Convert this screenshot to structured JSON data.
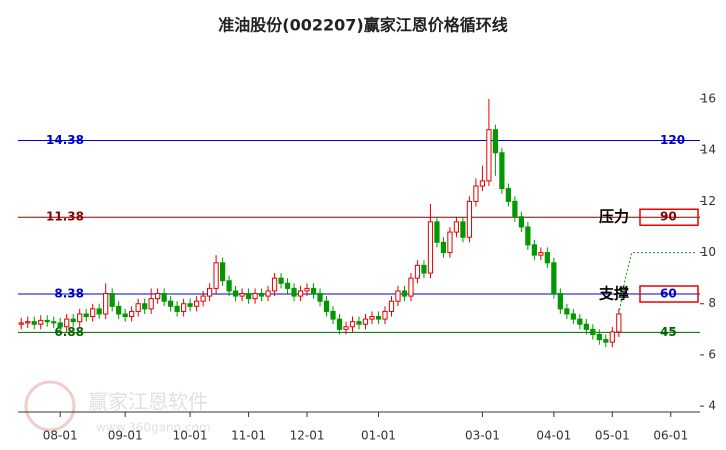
{
  "chart_data": {
    "type": "candlestick",
    "title": "准油股份(002207)赢家江恩价格循环线",
    "watermark": "赢家江恩软件",
    "watermark_url": "www.360gann.com",
    "up_color": "#e60000",
    "down_color": "#009900",
    "categories": [
      null,
      null,
      null,
      null,
      null,
      null,
      "08-01",
      null,
      null,
      null,
      null,
      null,
      null,
      null,
      null,
      null,
      "09-01",
      null,
      null,
      null,
      null,
      null,
      null,
      null,
      null,
      null,
      "10-01",
      null,
      null,
      null,
      null,
      null,
      null,
      null,
      null,
      "11-01",
      null,
      null,
      null,
      null,
      null,
      null,
      null,
      null,
      "12-01",
      null,
      null,
      null,
      null,
      null,
      null,
      null,
      null,
      null,
      null,
      "01-01",
      null,
      null,
      null,
      null,
      null,
      null,
      null,
      null,
      null,
      null,
      null,
      null,
      null,
      null,
      null,
      "03-01",
      null,
      null,
      null,
      null,
      null,
      null,
      null,
      null,
      null,
      null,
      "04-01",
      null,
      null,
      null,
      null,
      null,
      null,
      null,
      null,
      "05-01",
      null,
      null,
      null,
      null,
      null,
      null,
      null,
      null,
      "06-01",
      null,
      null,
      null,
      null
    ],
    "open": [
      7.2,
      7.25,
      7.3,
      7.2,
      7.35,
      7.3,
      7.25,
      7.1,
      7.4,
      7.3,
      7.6,
      7.5,
      7.8,
      7.6,
      8.4,
      7.9,
      7.6,
      7.5,
      7.7,
      8.0,
      7.8,
      8.2,
      8.4,
      8.1,
      7.9,
      7.7,
      8.0,
      7.9,
      8.1,
      8.3,
      8.6,
      9.6,
      8.9,
      8.5,
      8.3,
      8.4,
      8.2,
      8.4,
      8.3,
      8.5,
      9.0,
      8.8,
      8.6,
      8.3,
      8.5,
      8.6,
      8.4,
      8.1,
      7.7,
      7.4,
      7.0,
      7.1,
      7.3,
      7.2,
      7.4,
      7.5,
      7.4,
      7.7,
      8.1,
      8.5,
      8.3,
      9.0,
      9.5,
      9.2,
      11.2,
      10.4,
      10.0,
      10.8,
      11.2,
      10.6,
      12.0,
      12.6,
      12.8,
      14.8,
      13.9,
      12.5,
      12.0,
      11.4,
      11.0,
      10.3,
      9.9,
      10.0,
      9.6,
      8.4,
      7.8,
      7.6,
      7.4,
      7.2,
      7.0,
      6.8,
      6.6,
      6.5,
      6.9,
      null,
      null,
      null,
      null,
      null,
      null,
      null,
      null,
      null,
      null,
      null,
      null
    ],
    "high": [
      7.45,
      7.5,
      7.5,
      7.55,
      7.55,
      7.5,
      7.45,
      7.6,
      7.6,
      7.8,
      7.8,
      8.0,
      8.0,
      8.8,
      8.6,
      8.1,
      7.8,
      7.9,
      8.2,
      8.2,
      8.6,
      8.6,
      8.6,
      8.3,
      8.1,
      8.2,
      8.2,
      8.3,
      8.5,
      8.8,
      9.9,
      9.8,
      9.1,
      8.7,
      8.6,
      8.6,
      8.6,
      8.6,
      8.7,
      9.2,
      9.2,
      9.0,
      8.8,
      8.7,
      8.8,
      8.8,
      8.6,
      8.3,
      7.9,
      7.6,
      7.3,
      7.5,
      7.5,
      7.6,
      7.7,
      7.7,
      7.9,
      8.3,
      8.7,
      8.7,
      9.2,
      9.7,
      9.7,
      11.9,
      11.4,
      10.6,
      11.0,
      11.4,
      11.4,
      12.2,
      12.9,
      13.4,
      16.0,
      15.0,
      14.1,
      12.7,
      12.2,
      11.6,
      11.2,
      10.5,
      10.2,
      10.2,
      9.8,
      8.6,
      8.0,
      7.8,
      7.6,
      7.4,
      7.2,
      7.0,
      6.8,
      7.1,
      7.8,
      null,
      null,
      null,
      null,
      null,
      null,
      null,
      null,
      null,
      null,
      null,
      null
    ],
    "low": [
      7.0,
      7.05,
      7.0,
      7.0,
      7.1,
      7.05,
      6.9,
      6.9,
      7.1,
      7.1,
      7.3,
      7.3,
      7.4,
      7.4,
      7.7,
      7.4,
      7.3,
      7.3,
      7.5,
      7.6,
      7.6,
      8.0,
      7.9,
      7.7,
      7.5,
      7.5,
      7.7,
      7.7,
      7.9,
      8.1,
      8.4,
      8.7,
      8.3,
      8.1,
      8.1,
      8.0,
      8.0,
      8.1,
      8.1,
      8.3,
      8.6,
      8.4,
      8.1,
      8.1,
      8.3,
      8.2,
      7.9,
      7.5,
      7.2,
      6.8,
      6.8,
      6.9,
      7.0,
      7.0,
      7.2,
      7.2,
      7.2,
      7.5,
      7.9,
      8.1,
      8.1,
      8.8,
      9.0,
      9.0,
      10.2,
      9.8,
      9.8,
      10.6,
      10.4,
      10.4,
      11.8,
      12.4,
      12.6,
      13.0,
      12.3,
      11.8,
      11.2,
      10.8,
      10.1,
      9.7,
      9.7,
      9.4,
      8.2,
      7.6,
      7.4,
      7.2,
      7.0,
      6.8,
      6.6,
      6.4,
      6.3,
      6.3,
      6.7,
      null,
      null,
      null,
      null,
      null,
      null,
      null,
      null,
      null,
      null,
      null,
      null
    ],
    "close": [
      7.25,
      7.3,
      7.2,
      7.35,
      7.3,
      7.25,
      7.1,
      7.4,
      7.3,
      7.6,
      7.5,
      7.8,
      7.6,
      8.4,
      7.9,
      7.6,
      7.5,
      7.7,
      8.0,
      7.8,
      8.2,
      8.4,
      8.1,
      7.9,
      7.7,
      8.0,
      7.9,
      8.1,
      8.3,
      8.6,
      9.6,
      8.9,
      8.5,
      8.3,
      8.4,
      8.2,
      8.4,
      8.3,
      8.5,
      9.0,
      8.8,
      8.6,
      8.3,
      8.5,
      8.6,
      8.4,
      8.1,
      7.7,
      7.4,
      7.0,
      7.1,
      7.3,
      7.2,
      7.4,
      7.5,
      7.4,
      7.7,
      8.1,
      8.5,
      8.3,
      9.0,
      9.5,
      9.2,
      11.2,
      10.4,
      10.0,
      10.8,
      11.2,
      10.6,
      12.0,
      12.6,
      12.8,
      14.8,
      13.9,
      12.5,
      12.0,
      11.4,
      11.0,
      10.3,
      9.9,
      10.0,
      9.6,
      8.4,
      7.8,
      7.6,
      7.4,
      7.2,
      7.0,
      6.8,
      6.6,
      6.5,
      6.9,
      7.6,
      null,
      null,
      null,
      null,
      null,
      null,
      null,
      null,
      null,
      null,
      null,
      null
    ],
    "projection": {
      "color": "#009900",
      "values": [
        null,
        null,
        null,
        null,
        null,
        null,
        null,
        null,
        null,
        null,
        null,
        null,
        null,
        null,
        null,
        null,
        null,
        null,
        null,
        null,
        null,
        null,
        null,
        null,
        null,
        null,
        null,
        null,
        null,
        null,
        null,
        null,
        null,
        null,
        null,
        null,
        null,
        null,
        null,
        null,
        null,
        null,
        null,
        null,
        null,
        null,
        null,
        null,
        null,
        null,
        null,
        null,
        null,
        null,
        null,
        null,
        null,
        null,
        null,
        null,
        null,
        null,
        null,
        null,
        null,
        null,
        null,
        null,
        null,
        null,
        null,
        null,
        null,
        null,
        null,
        null,
        null,
        null,
        null,
        null,
        null,
        null,
        null,
        null,
        null,
        null,
        null,
        null,
        null,
        null,
        null,
        null,
        7.6,
        9.0,
        10.0,
        10.0,
        10.0,
        10.0,
        10.0,
        10.0,
        10.0,
        10.0,
        10.0,
        10.0,
        10.0
      ]
    },
    "levels": [
      {
        "value": 14.38,
        "cycle": 120,
        "color": "#0000cc"
      },
      {
        "value": 11.38,
        "cycle": 90,
        "color": "#8b0000",
        "annotation": "压力",
        "boxed": true
      },
      {
        "value": 8.38,
        "cycle": 60,
        "color": "#0000cc",
        "annotation": "支撑",
        "boxed": true
      },
      {
        "value": 6.88,
        "cycle": 45,
        "color": "#006400"
      }
    ],
    "ylim": [
      3.77,
      17.72
    ],
    "yticks": [
      4,
      6,
      8,
      10,
      12,
      14,
      16
    ]
  }
}
